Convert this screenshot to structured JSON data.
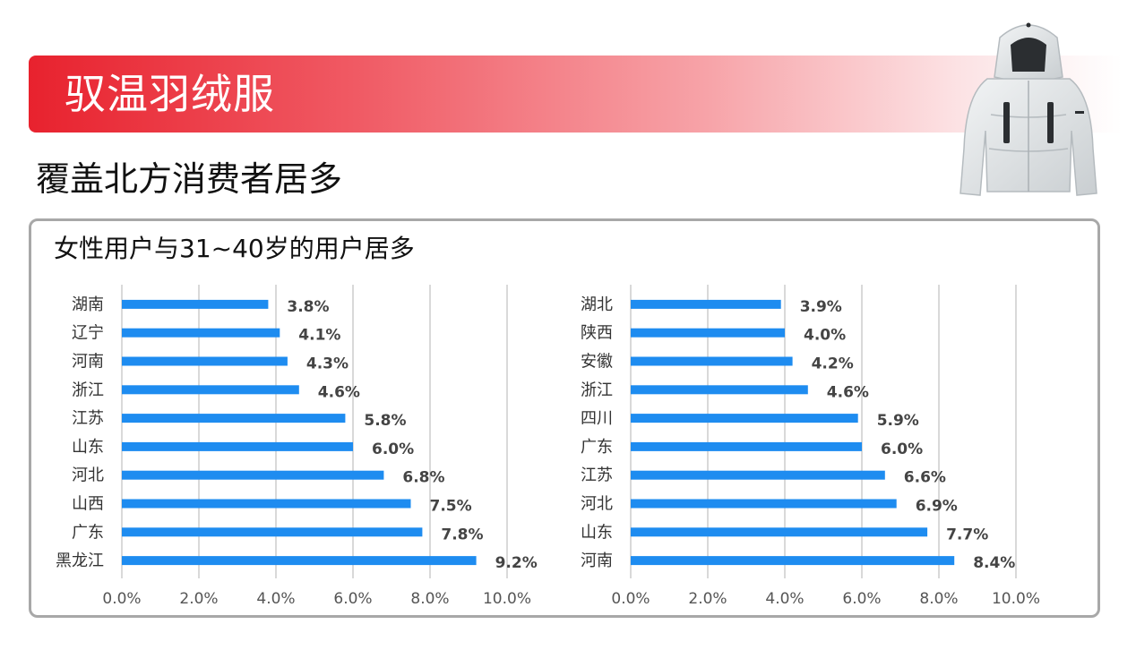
{
  "header": {
    "title": "驭温羽绒服",
    "subtitle": "覆盖北方消费者居多"
  },
  "panel": {
    "title": "女性用户与31~40岁的用户居多"
  },
  "colors": {
    "accent": "#e8222e",
    "bar": "#1e8cf0",
    "grid": "#d9d9d9",
    "panel_border": "#a8a8a8"
  },
  "chart_data": [
    {
      "type": "bar",
      "orientation": "horizontal",
      "categories": [
        "湖南",
        "辽宁",
        "河南",
        "浙江",
        "江苏",
        "山东",
        "河北",
        "山西",
        "广东",
        "黑龙江"
      ],
      "values": [
        3.8,
        4.1,
        4.3,
        4.6,
        5.8,
        6.0,
        6.8,
        7.5,
        7.8,
        9.2
      ],
      "data_labels": [
        "3.8%",
        "4.1%",
        "4.3%",
        "4.6%",
        "5.8%",
        "6.0%",
        "6.8%",
        "7.5%",
        "7.8%",
        "9.2%"
      ],
      "xlim": [
        0,
        10
      ],
      "x_ticks": [
        0,
        2,
        4,
        6,
        8,
        10
      ],
      "x_tick_labels": [
        "0.0%",
        "2.0%",
        "4.0%",
        "6.0%",
        "8.0%",
        "10.0%"
      ],
      "grid": true,
      "legend": "none"
    },
    {
      "type": "bar",
      "orientation": "horizontal",
      "categories": [
        "湖北",
        "陕西",
        "安徽",
        "浙江",
        "四川",
        "广东",
        "江苏",
        "河北",
        "山东",
        "河南"
      ],
      "values": [
        3.9,
        4.0,
        4.2,
        4.6,
        5.9,
        6.0,
        6.6,
        6.9,
        7.7,
        8.4
      ],
      "data_labels": [
        "3.9%",
        "4.0%",
        "4.2%",
        "4.6%",
        "5.9%",
        "6.0%",
        "6.6%",
        "6.9%",
        "7.7%",
        "8.4%"
      ],
      "xlim": [
        0,
        10
      ],
      "x_ticks": [
        0,
        2,
        4,
        6,
        8,
        10
      ],
      "x_tick_labels": [
        "0.0%",
        "2.0%",
        "4.0%",
        "6.0%",
        "8.0%",
        "10.0%"
      ],
      "grid": true,
      "legend": "none"
    }
  ]
}
